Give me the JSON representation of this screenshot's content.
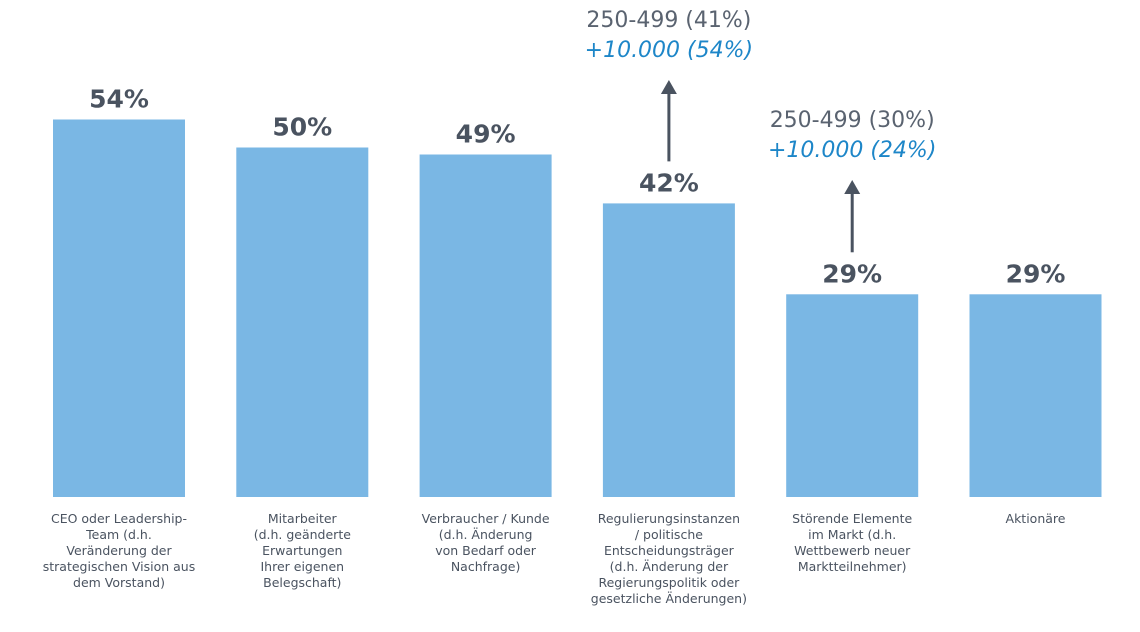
{
  "chart_data": {
    "type": "bar",
    "categories": [
      "CEO oder Leadership-Team (d.h. Veränderung der strategischen Vision aus dem Vorstand)",
      "Mitarbeiter (d.h. geänderte Erwartungen Ihrer eigenen Belegschaft)",
      "Verbraucher / Kunde (d.h. Änderung von Bedarf oder Nachfrage)",
      "Regulierungsinstanzen / politische Entscheidungsträger (d.h. Änderung der Regierungspolitik oder gesetzliche Änderungen)",
      "Störende Elemente im Markt (d.h. Wettbewerb neuer Marktteilnehmer)",
      "Aktionäre"
    ],
    "category_lines": [
      [
        "CEO oder Leadership-",
        "Team (d.h.",
        "Veränderung der",
        "strategischen Vision aus",
        "dem Vorstand)"
      ],
      [
        "Mitarbeiter",
        "(d.h. geänderte",
        "Erwartungen",
        "Ihrer eigenen",
        "Belegschaft)"
      ],
      [
        "Verbraucher / Kunde",
        "(d.h. Änderung",
        "von Bedarf oder",
        "Nachfrage)"
      ],
      [
        "Regulierungsinstanzen",
        "/ politische",
        "Entscheidungsträger",
        "(d.h. Änderung der",
        "Regierungspolitik oder",
        "gesetzliche Änderungen)"
      ],
      [
        "Störende Elemente",
        "im Markt (d.h.",
        "Wettbewerb neuer",
        "Marktteilnehmer)"
      ],
      [
        "Aktionäre"
      ]
    ],
    "values": [
      54,
      50,
      49,
      42,
      29,
      29
    ],
    "value_labels": [
      "54%",
      "50%",
      "49%",
      "42%",
      "29%",
      "29%"
    ],
    "ylim": [
      0,
      100
    ],
    "grid": false,
    "title": "",
    "xlabel": "",
    "ylabel": "",
    "colors": {
      "bar": "#7ab7e4",
      "label": "#4a5360",
      "highlight": "#1d86c8"
    },
    "annotations": [
      {
        "category_index": 3,
        "line1": "250-499 (41%)",
        "line2": "+10.000 (54%)"
      },
      {
        "category_index": 4,
        "line1": "250-499 (30%)",
        "line2": "+10.000 (24%)"
      }
    ]
  }
}
